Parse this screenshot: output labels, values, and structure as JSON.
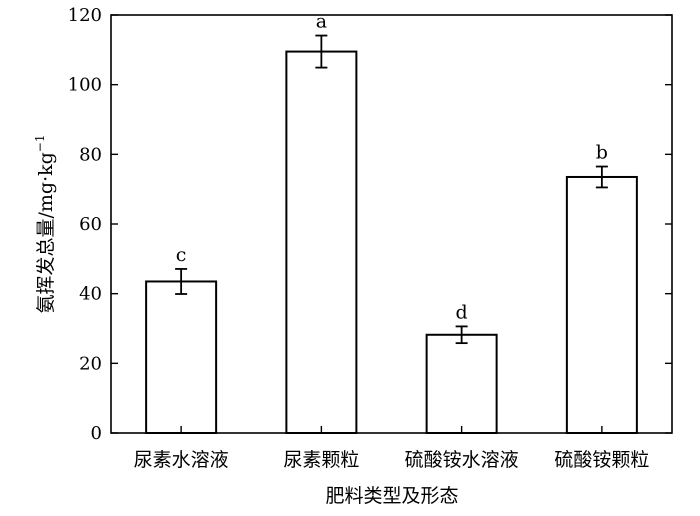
{
  "chart_data": {
    "type": "bar",
    "categories": [
      "尿素水溶液",
      "尿素颗粒",
      "硫酸铵水溶液",
      "硫酸铵颗粒"
    ],
    "values": [
      43.5,
      109.5,
      28.2,
      73.5
    ],
    "errors": [
      3.6,
      4.6,
      2.4,
      3.0
    ],
    "significance": [
      "c",
      "a",
      "d",
      "b"
    ],
    "xlabel": "肥料类型及形态",
    "ylabel": "氨挥发总量/mg·kg",
    "ylabel_superscript": "−1",
    "ylim": [
      0,
      120
    ],
    "yticks": [
      0,
      20,
      40,
      60,
      80,
      100,
      120
    ],
    "grid": false
  }
}
